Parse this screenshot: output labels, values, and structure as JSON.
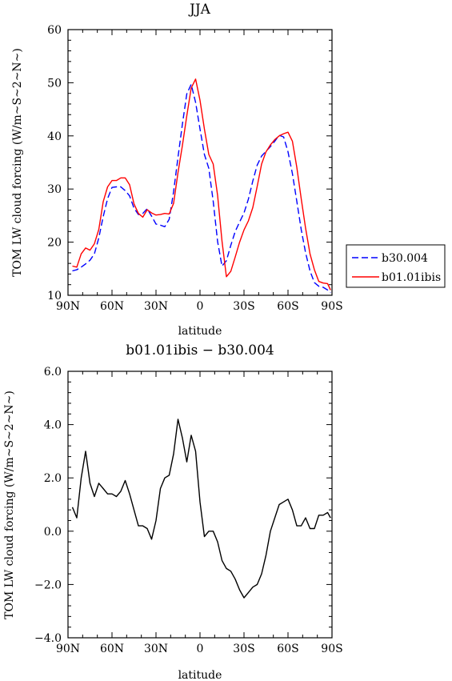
{
  "chart_data": [
    {
      "type": "line",
      "title": "JJA",
      "xlabel": "latitude",
      "ylabel": "TOM LW cloud forcing (W/m~S~2~N~)",
      "x_ticks": [
        "90N",
        "60N",
        "30N",
        "0",
        "30S",
        "60S",
        "90S"
      ],
      "x_tick_values": [
        90,
        60,
        30,
        0,
        -30,
        -60,
        -90
      ],
      "y_ticks": [
        "10",
        "20",
        "30",
        "40",
        "50",
        "60"
      ],
      "y_tick_values": [
        10,
        20,
        30,
        40,
        50,
        60
      ],
      "xlim": [
        90,
        -90
      ],
      "ylim": [
        10,
        60
      ],
      "legend_position": "right",
      "series": [
        {
          "name": "b30.004",
          "color": "#0000ff",
          "dash": "dashed",
          "x": [
            87,
            84,
            81,
            78,
            75,
            72,
            69,
            66,
            63,
            60,
            57,
            54,
            51,
            48,
            45,
            42,
            39,
            36,
            33,
            30,
            27,
            24,
            21,
            18,
            15,
            12,
            9,
            6,
            3,
            0,
            -3,
            -6,
            -9,
            -12,
            -15,
            -18,
            -21,
            -24,
            -27,
            -30,
            -33,
            -36,
            -39,
            -42,
            -45,
            -48,
            -51,
            -54,
            -57,
            -60,
            -63,
            -66,
            -69,
            -72,
            -75,
            -78,
            -81,
            -84,
            -87,
            -89
          ],
          "y": [
            14.6,
            14.8,
            15.3,
            15.9,
            16.6,
            17.8,
            20.8,
            24.8,
            28.2,
            30.3,
            30.4,
            30.4,
            29.7,
            28.7,
            26.4,
            25.2,
            25.4,
            26.3,
            24.9,
            23.4,
            23.2,
            22.9,
            24.3,
            29.5,
            36,
            42.2,
            47.9,
            49.7,
            46.3,
            41.3,
            36.5,
            33.9,
            27.7,
            20.1,
            15.5,
            16.5,
            19.4,
            22,
            23.8,
            25.5,
            28.1,
            31.5,
            34.5,
            36.2,
            37.1,
            38,
            39,
            40.1,
            39.8,
            37,
            32.9,
            27.7,
            22.4,
            18,
            14.6,
            12.4,
            11.7,
            11.5,
            11.0,
            10.5
          ]
        },
        {
          "name": "b01.01ibis",
          "color": "#ff0000",
          "dash": "solid",
          "x": [
            87,
            84,
            81,
            78,
            75,
            72,
            69,
            66,
            63,
            60,
            57,
            54,
            51,
            48,
            45,
            42,
            39,
            36,
            33,
            30,
            27,
            24,
            21,
            18,
            15,
            12,
            9,
            6,
            3,
            0,
            -3,
            -6,
            -9,
            -12,
            -15,
            -18,
            -21,
            -24,
            -27,
            -30,
            -33,
            -36,
            -39,
            -42,
            -45,
            -48,
            -51,
            -54,
            -57,
            -60,
            -63,
            -66,
            -69,
            -72,
            -75,
            -78,
            -81,
            -84,
            -87,
            -89
          ],
          "y": [
            15.5,
            15.3,
            17.8,
            18.9,
            18.5,
            19.7,
            22.4,
            27.6,
            30.4,
            31.6,
            31.6,
            32.1,
            32.1,
            30.8,
            27.2,
            25.4,
            24.7,
            26.1,
            25.5,
            25.1,
            25.2,
            25.4,
            25.3,
            27.3,
            33.1,
            38.2,
            43.8,
            49,
            50.7,
            46.7,
            41.3,
            36.5,
            34.7,
            28.8,
            20.2,
            13.5,
            14.5,
            17.2,
            20,
            22.3,
            24,
            26.5,
            30.5,
            34.7,
            37,
            38.3,
            39.3,
            40,
            40.4,
            40.7,
            39,
            34.1,
            28.2,
            22.6,
            17.8,
            14.8,
            12.6,
            12.3,
            12.2,
            11.0
          ]
        }
      ]
    },
    {
      "type": "line",
      "title": "b01.01ibis − b30.004",
      "xlabel": "latitude",
      "ylabel": "TOM LW cloud forcing (W/m~S~2~N~)",
      "x_ticks": [
        "90N",
        "60N",
        "30N",
        "0",
        "30S",
        "60S",
        "90S"
      ],
      "x_tick_values": [
        90,
        60,
        30,
        0,
        -30,
        -60,
        -90
      ],
      "y_ticks": [
        "−4.0",
        "−2.0",
        "0.0",
        "2.0",
        "4.0",
        "6.0"
      ],
      "y_tick_values": [
        -4,
        -2,
        0,
        2,
        4,
        6
      ],
      "xlim": [
        90,
        -90
      ],
      "ylim": [
        -4,
        6
      ],
      "series": [
        {
          "color": "#000000",
          "dash": "solid",
          "x": [
            87,
            84,
            81,
            78,
            75,
            72,
            69,
            66,
            63,
            60,
            57,
            54,
            51,
            48,
            45,
            42,
            39,
            36,
            33,
            30,
            27,
            24,
            21,
            18,
            15,
            12,
            9,
            6,
            3,
            0,
            -3,
            -6,
            -9,
            -12,
            -15,
            -18,
            -21,
            -24,
            -27,
            -30,
            -33,
            -36,
            -39,
            -42,
            -45,
            -48,
            -51,
            -54,
            -57,
            -60,
            -63,
            -66,
            -69,
            -72,
            -75,
            -78,
            -81,
            -84,
            -87,
            -89
          ],
          "y": [
            0.9,
            0.5,
            2.0,
            3.0,
            1.8,
            1.3,
            1.8,
            1.6,
            1.4,
            1.4,
            1.3,
            1.5,
            1.9,
            1.4,
            0.8,
            0.2,
            0.2,
            0.1,
            -0.3,
            0.4,
            1.6,
            2.0,
            2.1,
            2.9,
            4.2,
            3.5,
            2.6,
            3.6,
            3.0,
            1.1,
            -0.2,
            0.0,
            0.0,
            -0.4,
            -1.1,
            -1.4,
            -1.5,
            -1.8,
            -2.2,
            -2.5,
            -2.3,
            -2.1,
            -2.0,
            -1.6,
            -0.9,
            0.0,
            0.5,
            1.0,
            1.1,
            1.2,
            0.8,
            0.2,
            0.2,
            0.5,
            0.1,
            0.1,
            0.6,
            0.6,
            0.7,
            0.5
          ]
        }
      ]
    }
  ]
}
